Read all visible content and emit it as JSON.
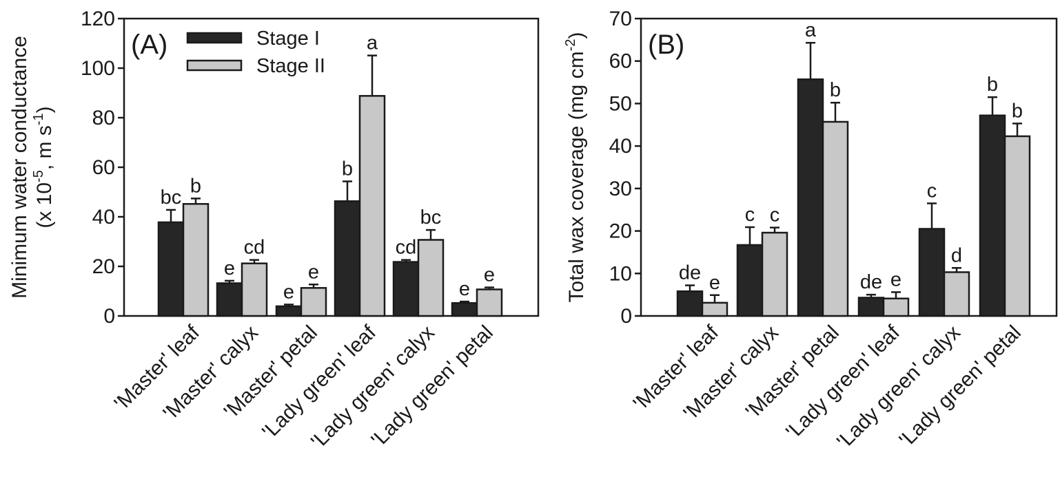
{
  "colors": {
    "stage1": "#262626",
    "stage2": "#c8c8c8",
    "ink": "#1a1a1a"
  },
  "chart_data": [
    {
      "type": "bar",
      "panel_label": "(A)",
      "categories": [
        "'Master' leaf",
        "'Master' calyx",
        "'Master' petal",
        "'Lady green' leaf",
        "'Lady green' calyx",
        "'Lady green' petal"
      ],
      "ylabel_line1": "Minimum water conductance",
      "ylabel_line2": {
        "pre": "(x 10",
        "sup1": "-5",
        "mid": ", m s",
        "sup2": "-1",
        "post": ")"
      },
      "ylim": [
        0,
        120
      ],
      "yticks": [
        0,
        20,
        40,
        60,
        80,
        100,
        120
      ],
      "legend": {
        "position": "top-left",
        "entries": [
          "Stage I",
          "Stage II"
        ]
      },
      "series": [
        {
          "name": "Stage I",
          "values": [
            37.8,
            13.2,
            3.9,
            46.3,
            21.8,
            5.2
          ],
          "errors": [
            5.0,
            1.0,
            0.7,
            8.0,
            0.8,
            0.6
          ],
          "letters": [
            "bc",
            "e",
            "e",
            "b",
            "cd",
            "e"
          ]
        },
        {
          "name": "Stage II",
          "values": [
            45.2,
            21.2,
            11.3,
            88.8,
            30.7,
            10.7
          ],
          "errors": [
            2.2,
            1.4,
            1.4,
            16.3,
            4.0,
            0.8
          ],
          "letters": [
            "b",
            "cd",
            "e",
            "a",
            "bc",
            "e"
          ]
        }
      ]
    },
    {
      "type": "bar",
      "panel_label": "(B)",
      "categories": [
        "'Master' leaf",
        "'Master' calyx",
        "'Master' petal",
        "'Lady green' leaf",
        "'Lady green' calyx",
        "'Lady green' petal"
      ],
      "ylabel_line1": {
        "pre": "Total wax coverage (mg cm",
        "sup": "-2",
        "post": ")"
      },
      "ylim": [
        0,
        70
      ],
      "yticks": [
        0,
        10,
        20,
        30,
        40,
        50,
        60,
        70
      ],
      "series": [
        {
          "name": "Stage I",
          "values": [
            5.8,
            16.7,
            55.7,
            4.3,
            20.5,
            47.2
          ],
          "errors": [
            1.4,
            4.2,
            8.6,
            0.7,
            6.0,
            4.3
          ],
          "letters": [
            "de",
            "c",
            "a",
            "de",
            "c",
            "b"
          ]
        },
        {
          "name": "Stage II",
          "values": [
            3.1,
            19.6,
            45.7,
            4.1,
            10.3,
            42.3
          ],
          "errors": [
            1.8,
            1.2,
            4.5,
            1.5,
            1.0,
            3.0
          ],
          "letters": [
            "e",
            "c",
            "b",
            "e",
            "d",
            "b"
          ]
        }
      ]
    }
  ]
}
